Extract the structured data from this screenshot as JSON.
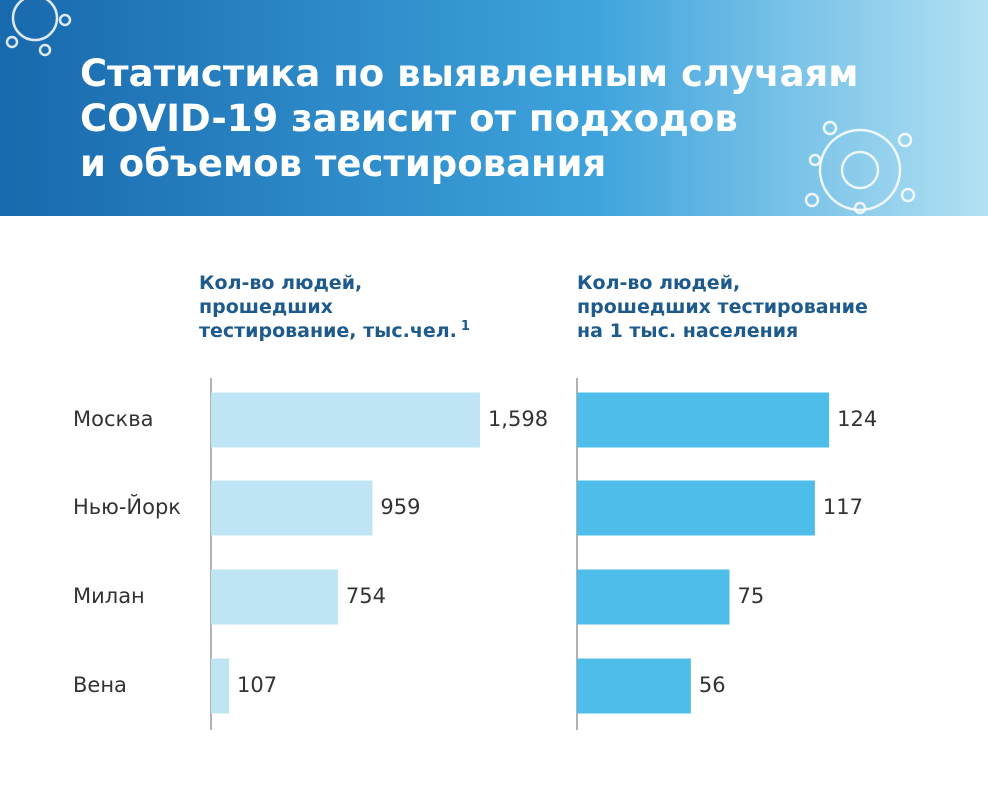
{
  "title": [
    "Статистика по выявленным случаям",
    "COVID-19 зависит от подходов",
    "и объемов тестирования"
  ],
  "chart_data": [
    {
      "type": "bar",
      "orientation": "horizontal",
      "title": [
        "Кол-во людей,",
        "прошедших",
        "тестирование, тыс.чел."
      ],
      "title_note": "1",
      "categories": [
        "Москва",
        "Нью-Йорк",
        "Милан",
        "Вена"
      ],
      "values": [
        1598,
        959,
        754,
        107
      ],
      "value_labels": [
        "1,598",
        "959",
        "754",
        "107"
      ],
      "color": "#bfe5f4",
      "xlim": [
        0,
        2000
      ]
    },
    {
      "type": "bar",
      "orientation": "horizontal",
      "title": [
        "Кол-во людей,",
        "прошедших тестирование",
        "на 1 тыс. населения"
      ],
      "values": [
        124,
        117,
        75,
        56
      ],
      "color": "#4fbde9",
      "xlim": [
        0,
        150
      ]
    }
  ]
}
